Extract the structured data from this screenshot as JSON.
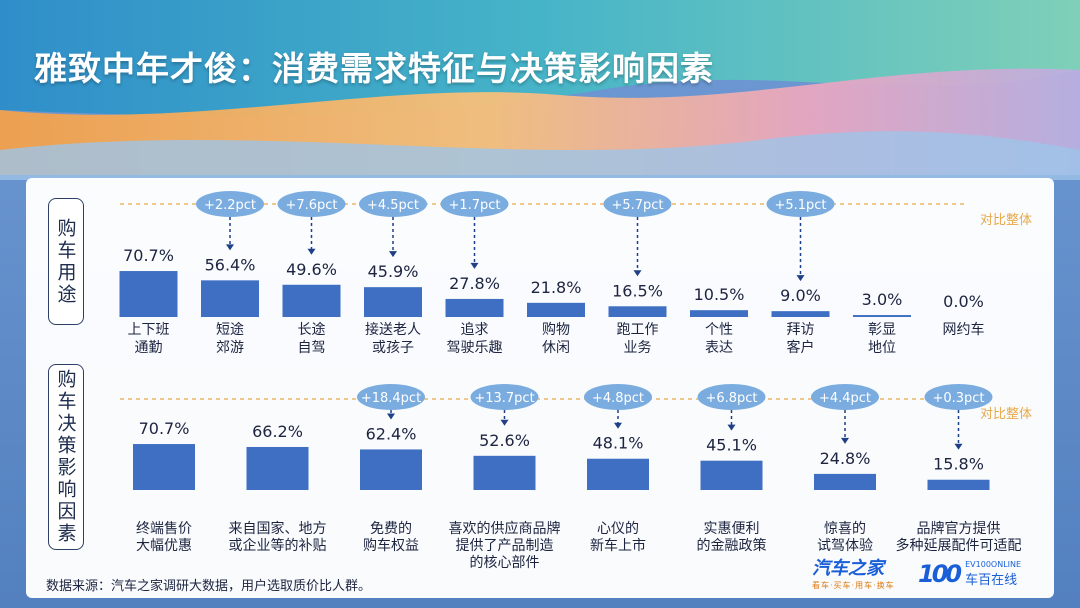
{
  "title": "雅致中年才俊：消费需求特征与决策影响因素",
  "source": "数据来源：汽车之家调研大数据，用户选取质价比人群。",
  "logos": {
    "autohome": "汽车之家",
    "autohome_tag": "看车·买车·用车·换车",
    "ev100_mark": "100",
    "ev100_en": "EV100ONLINE",
    "ev100_cn": "车百在线"
  },
  "colors": {
    "bar": "#3e6fc2",
    "bubble": "#7aace0",
    "compare": "#e8a94a",
    "arrow": "#1f3f86"
  },
  "chart_data": [
    {
      "type": "bar",
      "section_label": "购车用途",
      "compare_label": "对比整体",
      "categories": [
        "上下班\n通勤",
        "短途\n郊游",
        "长途\n自驾",
        "接送老人\n或孩子",
        "追求\n驾驶乐趣",
        "购物\n休闲",
        "跑工作\n业务",
        "个性\n表达",
        "拜访\n客户",
        "彰显\n地位",
        "网约车"
      ],
      "values": [
        70.7,
        56.4,
        49.6,
        45.9,
        27.8,
        21.8,
        16.5,
        10.5,
        9.0,
        3.0,
        0.0
      ],
      "value_labels": [
        "70.7%",
        "56.4%",
        "49.6%",
        "45.9%",
        "27.8%",
        "21.8%",
        "16.5%",
        "10.5%",
        "9.0%",
        "3.0%",
        "0.0%"
      ],
      "diffs": [
        "",
        "+2.2pct",
        "+7.6pct",
        "+4.5pct",
        "+1.7pct",
        "",
        "+5.7pct",
        "",
        "+5.1pct",
        "",
        ""
      ]
    },
    {
      "type": "bar",
      "section_label": "购车决策影响因素",
      "compare_label": "对比整体",
      "categories": [
        "终端售价\n大幅优惠",
        "来自国家、地方\n或企业等的补贴",
        "免费的\n购车权益",
        "喜欢的供应商品牌\n提供了产品制造\n的核心部件",
        "心仪的\n新车上市",
        "实惠便利\n的金融政策",
        "惊喜的\n试驾体验",
        "品牌官方提供\n多种延展配件可适配"
      ],
      "values": [
        70.7,
        66.2,
        62.4,
        52.6,
        48.1,
        45.1,
        24.8,
        15.8
      ],
      "value_labels": [
        "70.7%",
        "66.2%",
        "62.4%",
        "52.6%",
        "48.1%",
        "45.1%",
        "24.8%",
        "15.8%"
      ],
      "diffs": [
        "",
        "",
        "+18.4pct",
        "+13.7pct",
        "+4.8pct",
        "+6.8pct",
        "+4.4pct",
        "+0.3pct"
      ]
    }
  ]
}
